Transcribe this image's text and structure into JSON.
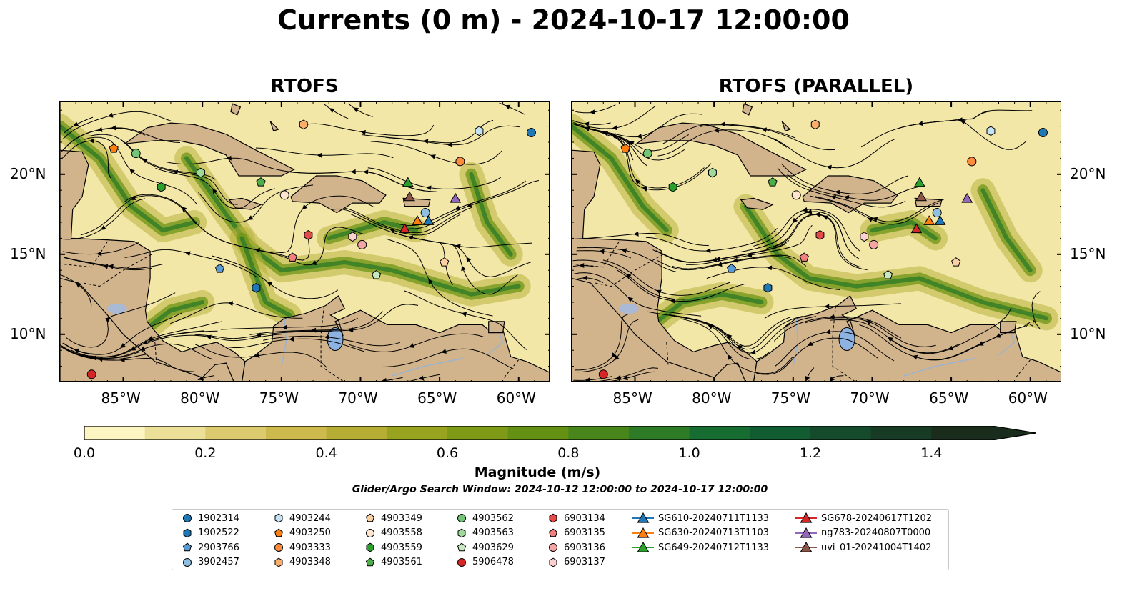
{
  "title": "Currents (0 m) - 2024-10-17 12:00:00",
  "panels": [
    {
      "title": "RTOFS"
    },
    {
      "title": "RTOFS (PARALLEL)"
    }
  ],
  "colorbar": {
    "label": "Magnitude (m/s)",
    "range": [
      0.0,
      1.5
    ],
    "extend": "max",
    "ticks": [
      "0.0",
      "0.2",
      "0.4",
      "0.6",
      "0.8",
      "1.0",
      "1.2",
      "1.4"
    ],
    "colors": [
      "#fcf5c2",
      "#ecdf97",
      "#dcca6f",
      "#cdb94c",
      "#b6ae34",
      "#98a420",
      "#7e9a16",
      "#649114",
      "#48861b",
      "#2d7a27",
      "#176c31",
      "#125c31",
      "#154a2c",
      "#183b25",
      "#1a2d1d"
    ]
  },
  "search_window": "Glider/Argo Search Window: 2024-10-12 12:00:00 to 2024-10-17 12:00:00",
  "chart_data": {
    "type": "map",
    "xlim": [
      -89,
      -58
    ],
    "ylim": [
      7,
      24.5
    ],
    "xticks": [
      "85°W",
      "80°W",
      "75°W",
      "70°W",
      "65°W",
      "60°W"
    ],
    "yticks": [
      "20°N",
      "15°N",
      "10°N"
    ],
    "legend_position": "bottom-center",
    "platforms": [
      {
        "id": "1902314",
        "marker": "circle",
        "color": "#1f77b4",
        "lon": -59.2,
        "lat": 22.6
      },
      {
        "id": "1902522",
        "marker": "hexagon",
        "color": "#1f77b4",
        "lon": -76.6,
        "lat": 12.9
      },
      {
        "id": "2903766",
        "marker": "pentagon",
        "color": "#5b9bd5",
        "lon": -78.9,
        "lat": 14.1
      },
      {
        "id": "3902457",
        "marker": "circle",
        "color": "#8ebfe0",
        "lon": -65.9,
        "lat": 17.6
      },
      {
        "id": "4903244",
        "marker": "hexagon",
        "color": "#c6e3f3",
        "lon": -62.5,
        "lat": 22.7
      },
      {
        "id": "4903250",
        "marker": "pentagon",
        "color": "#ff7f0e",
        "lon": -85.6,
        "lat": 21.6
      },
      {
        "id": "4903333",
        "marker": "circle",
        "color": "#fd8d3c",
        "lon": -63.7,
        "lat": 20.8
      },
      {
        "id": "4903348",
        "marker": "hexagon",
        "color": "#fdae6b",
        "lon": -73.6,
        "lat": 23.1
      },
      {
        "id": "4903349",
        "marker": "pentagon",
        "color": "#fdd0a2",
        "lon": -64.7,
        "lat": 14.5
      },
      {
        "id": "4903558",
        "marker": "circle",
        "color": "#fee6ce",
        "lon": -74.8,
        "lat": 18.7
      },
      {
        "id": "4903559",
        "marker": "hexagon",
        "color": "#2ca02c",
        "lon": -82.6,
        "lat": 19.2
      },
      {
        "id": "4903561",
        "marker": "pentagon",
        "color": "#4daf4a",
        "lon": -76.3,
        "lat": 19.5
      },
      {
        "id": "4903562",
        "marker": "circle",
        "color": "#74c476",
        "lon": -84.2,
        "lat": 21.3
      },
      {
        "id": "4903563",
        "marker": "hexagon",
        "color": "#a1d99b",
        "lon": -80.1,
        "lat": 20.1
      },
      {
        "id": "4903629",
        "marker": "pentagon",
        "color": "#c7e9c0",
        "lon": -69.0,
        "lat": 13.7
      },
      {
        "id": "5906478",
        "marker": "circle",
        "color": "#d62728",
        "lon": -87.0,
        "lat": 7.5
      },
      {
        "id": "6903134",
        "marker": "hexagon",
        "color": "#e34a4a",
        "lon": -73.3,
        "lat": 16.2
      },
      {
        "id": "6903135",
        "marker": "pentagon",
        "color": "#f08080",
        "lon": -74.3,
        "lat": 14.8
      },
      {
        "id": "6903136",
        "marker": "circle",
        "color": "#f4a4a4",
        "lon": -69.9,
        "lat": 15.6
      },
      {
        "id": "6903137",
        "marker": "hexagon",
        "color": "#fbd0d0",
        "lon": -70.5,
        "lat": 16.1
      },
      {
        "id": "SG610-20240711T1133",
        "marker": "triangle",
        "color": "#1f77b4",
        "lon": -65.7,
        "lat": 17.1
      },
      {
        "id": "SG630-20240713T1103",
        "marker": "triangle",
        "color": "#ff7f0e",
        "lon": -66.4,
        "lat": 17.1
      },
      {
        "id": "SG649-20240712T1133",
        "marker": "triangle",
        "color": "#2ca02c",
        "lon": -67.0,
        "lat": 19.5
      },
      {
        "id": "SG678-20240617T1202",
        "marker": "triangle",
        "color": "#d62728",
        "lon": -67.2,
        "lat": 16.6
      },
      {
        "id": "ng783-20240807T0000",
        "marker": "triangle",
        "color": "#9467bd",
        "lon": -64.0,
        "lat": 18.5
      },
      {
        "id": "uvi_01-20241004T1402",
        "marker": "triangle",
        "color": "#8c564b",
        "lon": -66.9,
        "lat": 18.6
      }
    ]
  }
}
